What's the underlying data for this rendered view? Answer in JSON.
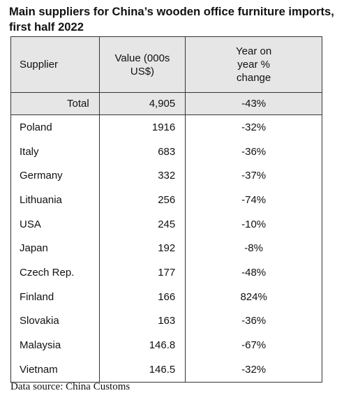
{
  "title": "Main suppliers for China’s wooden office furniture imports, first half 2022",
  "table": {
    "headers": [
      "Supplier",
      "Value (000s US$)",
      "Year on year % change"
    ],
    "total": [
      "Total",
      "4,905",
      "-43%"
    ],
    "rows": [
      [
        "Poland",
        "1916",
        "-32%"
      ],
      [
        "Italy",
        "683",
        "-36%"
      ],
      [
        "Germany",
        "332",
        "-37%"
      ],
      [
        "Lithuania",
        "256",
        "-74%"
      ],
      [
        "USA",
        "245",
        "-10%"
      ],
      [
        "Japan",
        "192",
        "-8%"
      ],
      [
        "Czech Rep.",
        "177",
        "-48%"
      ],
      [
        "Finland",
        "166",
        "824%"
      ],
      [
        "Slovakia",
        "163",
        "-36%"
      ],
      [
        "Malaysia",
        "146.8",
        "-67%"
      ],
      [
        "Vietnam",
        "146.5",
        "-32%"
      ]
    ]
  },
  "source": "Data source: China Customs"
}
